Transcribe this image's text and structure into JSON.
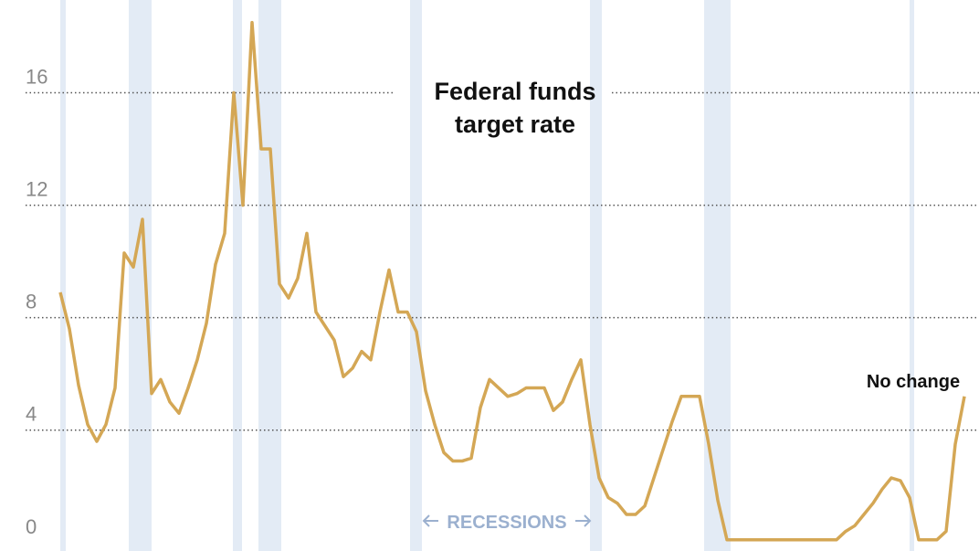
{
  "chart_data": {
    "type": "line",
    "title": "Federal funds target rate",
    "annotation": "No change",
    "recessions_label": "RECESSIONS",
    "recessions": [
      [
        0,
        0.6
      ],
      [
        7.5,
        10
      ],
      [
        18.9,
        19.9
      ],
      [
        21.7,
        24.2
      ],
      [
        38.3,
        39.6
      ],
      [
        58,
        59.3
      ],
      [
        70.5,
        73.4
      ],
      [
        93,
        93.5
      ]
    ],
    "recession_color": "#e3ebf5",
    "color": "#d4a755",
    "xlim": [
      0,
      100
    ],
    "ylim": [
      -0.3,
      19.3
    ],
    "yticks": [
      0,
      4,
      8,
      12,
      16
    ],
    "grid": true,
    "values": [
      8.9,
      7.6,
      5.6,
      4.2,
      3.6,
      4.2,
      5.5,
      10.3,
      9.8,
      11.5,
      5.3,
      5.8,
      5.0,
      4.6,
      5.5,
      6.5,
      7.8,
      9.9,
      11,
      16,
      12,
      18.5,
      14,
      14,
      9.2,
      8.7,
      9.4,
      11,
      8.2,
      7.7,
      7.2,
      5.9,
      6.2,
      6.8,
      6.5,
      8.2,
      9.7,
      8.2,
      8.2,
      7.5,
      5.4,
      4.2,
      3.2,
      2.9,
      2.9,
      3,
      4.8,
      5.8,
      5.5,
      5.2,
      5.3,
      5.5,
      5.5,
      5.5,
      4.7,
      5.0,
      5.8,
      6.5,
      4.2,
      2.3,
      1.6,
      1.4,
      1,
      1,
      1.3,
      2.3,
      3.3,
      4.3,
      5.2,
      5.2,
      5.2,
      3.5,
      1.5,
      0.1,
      0.1,
      0.1,
      0.1,
      0.1,
      0.1,
      0.1,
      0.1,
      0.1,
      0.1,
      0.1,
      0.1,
      0.1,
      0.4,
      0.6,
      1,
      1.4,
      1.9,
      2.3,
      2.2,
      1.6,
      0.1,
      0.1,
      0.1,
      0.4,
      3.5,
      5.2
    ]
  }
}
